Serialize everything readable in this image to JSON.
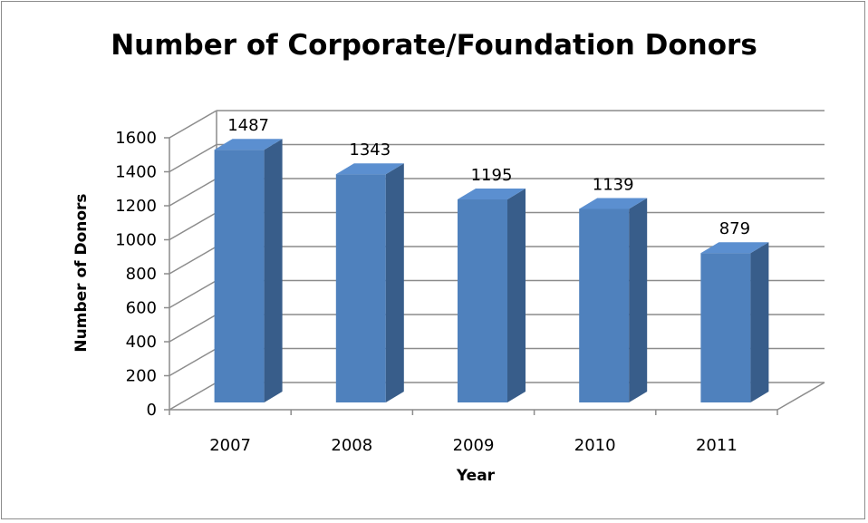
{
  "chart_data": {
    "type": "bar",
    "title": "Number of Corporate/Foundation Donors",
    "xlabel": "Year",
    "ylabel": "Number of Donors",
    "categories": [
      "2007",
      "2008",
      "2009",
      "2010",
      "2011"
    ],
    "values": [
      1487,
      1343,
      1195,
      1139,
      879
    ],
    "ylim": [
      0,
      1600
    ],
    "yticks": [
      "0",
      "200",
      "400",
      "600",
      "800",
      "1000",
      "1200",
      "1400",
      "1600"
    ],
    "grid": true,
    "three_d": true,
    "colors": {
      "bar_front": "#4f81bd",
      "bar_side": "#385d8a",
      "bar_top": "#5b8fd0",
      "grid": "#8c8c8c",
      "wall": "#8c8c8c"
    }
  }
}
